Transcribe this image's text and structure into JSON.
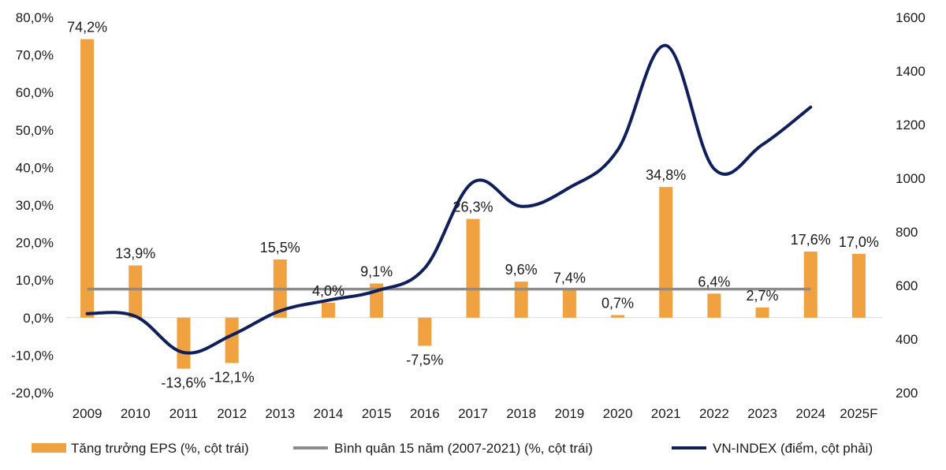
{
  "chart_data": {
    "type": "bar",
    "categories": [
      "2009",
      "2010",
      "2011",
      "2012",
      "2013",
      "2014",
      "2015",
      "2016",
      "2017",
      "2018",
      "2019",
      "2020",
      "2021",
      "2022",
      "2023",
      "2024",
      "2025F"
    ],
    "series": [
      {
        "name": "Tăng trưởng EPS (%, cột trái)",
        "type": "bar",
        "axis": "left",
        "values": [
          74.2,
          13.9,
          -13.6,
          -12.1,
          15.5,
          4.0,
          9.1,
          -7.5,
          26.3,
          9.6,
          7.4,
          0.7,
          34.8,
          6.4,
          2.7,
          17.6,
          17.0
        ],
        "labels": [
          "74,2%",
          "13,9%",
          "-13,6%",
          "-12,1%",
          "15,5%",
          "4,0%",
          "9,1%",
          "-7,5%",
          "26,3%",
          "9,6%",
          "7,4%",
          "0,7%",
          "34,8%",
          "6,4%",
          "2,7%",
          "17,6%",
          "17,0%"
        ],
        "color": "#F0A140"
      },
      {
        "name": "Bình quân 15 năm (2007-2021) (%, cột trái)",
        "type": "line",
        "axis": "left",
        "values": [
          7.6,
          7.6,
          7.6,
          7.6,
          7.6,
          7.6,
          7.6,
          7.6,
          7.6,
          7.6,
          7.6,
          7.6,
          7.6,
          7.6,
          7.6,
          7.6,
          null
        ],
        "color": "#8C8C8C"
      },
      {
        "name": "VN-INDEX (điểm, cột phải)",
        "type": "line",
        "axis": "right",
        "values": [
          495,
          485,
          350,
          415,
          505,
          545,
          580,
          665,
          985,
          895,
          965,
          1105,
          1495,
          1035,
          1125,
          1265,
          null
        ],
        "color": "#0F1F5C"
      }
    ],
    "left_axis": {
      "ylim": [
        -20,
        80
      ],
      "ticks": [
        -20,
        -10,
        0,
        10,
        20,
        30,
        40,
        50,
        60,
        70,
        80
      ],
      "tick_labels": [
        "-20,0%",
        "-10,0%",
        "0,0%",
        "10,0%",
        "20,0%",
        "30,0%",
        "40,0%",
        "50,0%",
        "60,0%",
        "70,0%",
        "80,0%"
      ]
    },
    "right_axis": {
      "ylim": [
        200,
        1600
      ],
      "ticks": [
        200,
        400,
        600,
        800,
        1000,
        1200,
        1400,
        1600
      ],
      "tick_labels": [
        "200",
        "400",
        "600",
        "800",
        "1000",
        "1200",
        "1400",
        "1600"
      ]
    },
    "legend": {
      "placement": "bottom",
      "items": [
        {
          "label": "Tăng trưởng EPS (%, cột trái)",
          "marker": "bar"
        },
        {
          "label": "Bình quân 15 năm (2007-2021) (%, cột trái)",
          "marker": "line"
        },
        {
          "label": "VN-INDEX (điểm, cột phải)",
          "marker": "line"
        }
      ]
    },
    "grid": false
  }
}
